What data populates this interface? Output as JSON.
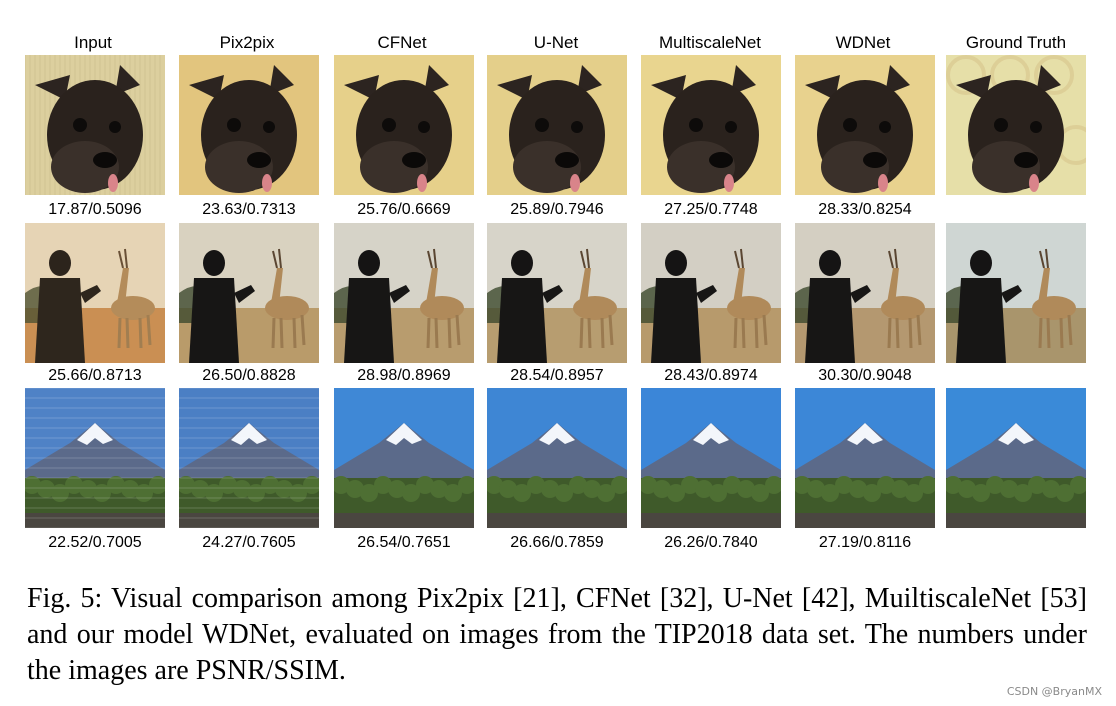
{
  "columns": [
    "Input",
    "Pix2pix",
    "CFNet",
    "U-Net",
    "MultiscaleNet",
    "WDNet",
    "Ground Truth"
  ],
  "rows": [
    {
      "subject": "dog",
      "metrics": [
        "17.87/0.5096",
        "23.63/0.7313",
        "25.76/0.6669",
        "25.89/0.7946",
        "27.25/0.7748",
        "28.33/0.8254",
        ""
      ]
    },
    {
      "subject": "man-and-gazelle",
      "metrics": [
        "25.66/0.8713",
        "26.50/0.8828",
        "28.98/0.8969",
        "28.54/0.8957",
        "28.43/0.8974",
        "30.30/0.9048",
        ""
      ]
    },
    {
      "subject": "snow-mountain",
      "metrics": [
        "22.52/0.7005",
        "24.27/0.7605",
        "26.54/0.7651",
        "26.66/0.7859",
        "26.26/0.7840",
        "27.19/0.8116",
        ""
      ]
    }
  ],
  "caption": "Fig. 5: Visual comparison among Pix2pix [21], CFNet [32], U-Net [42], MuiltiscaleNet [53] and our model WDNet, evaluated on images from the TIP2018 data set. The numbers under the images are PSNR/SSIM.",
  "watermark": "CSDN @BryanMX"
}
